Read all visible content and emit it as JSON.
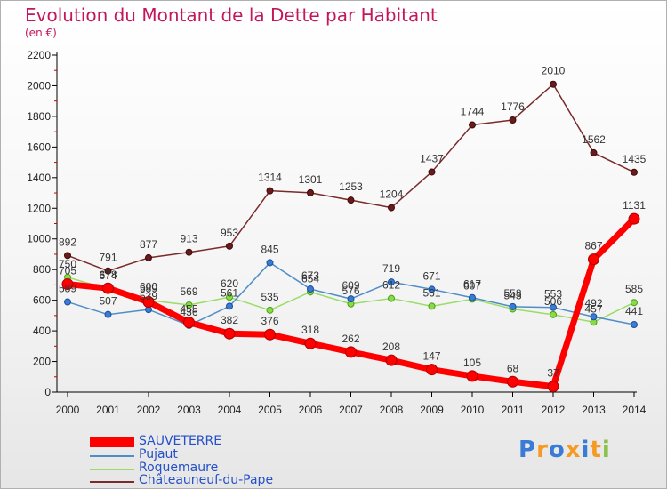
{
  "chart_data": {
    "type": "line",
    "title": "Evolution du Montant de la Dette par Habitant",
    "subtitle": "(en €)",
    "xlabel": "",
    "ylabel": "",
    "categories": [
      "2000",
      "2001",
      "2002",
      "2003",
      "2004",
      "2005",
      "2006",
      "2007",
      "2008",
      "2009",
      "2010",
      "2011",
      "2012",
      "2013",
      "2014"
    ],
    "ylim": [
      0,
      2200
    ],
    "yticks": [
      0,
      200,
      400,
      600,
      800,
      1000,
      1200,
      1400,
      1600,
      1800,
      2000,
      2200
    ],
    "grid": false,
    "legend_position": "bottom-left",
    "series": [
      {
        "name": "SAUVETERRE",
        "color": "#ff0000",
        "values": [
          705,
          678,
          589,
          455,
          382,
          376,
          318,
          262,
          208,
          147,
          105,
          68,
          37,
          867,
          1131
        ]
      },
      {
        "name": "Pujaut",
        "color": "#4f8dc9",
        "values": [
          589,
          507,
          539,
          436,
          561,
          845,
          673,
          609,
          719,
          671,
          617,
          558,
          553,
          492,
          441
        ]
      },
      {
        "name": "Roquemaure",
        "color": "#99dd66",
        "values": [
          750,
          674,
          600,
          569,
          620,
          535,
          654,
          576,
          612,
          561,
          607,
          543,
          506,
          457,
          585
        ]
      },
      {
        "name": "Châteauneuf-du-Pape",
        "color": "#7a2a2a",
        "values": [
          892,
          791,
          877,
          913,
          953,
          1314,
          1301,
          1253,
          1204,
          1437,
          1744,
          1776,
          2010,
          1562,
          1435
        ]
      }
    ],
    "data_labels": [
      [
        "705",
        "678",
        "589",
        "455",
        "382",
        "376",
        "318",
        "262",
        "208",
        "147",
        "105",
        "68",
        "37",
        "867",
        "1131"
      ],
      [
        "589",
        "507",
        "539",
        "436",
        "561",
        "845",
        "673",
        "609",
        "719",
        "671",
        "617",
        "558",
        "553",
        "492",
        "441"
      ],
      [
        "750",
        "674",
        "600",
        "569",
        "620",
        "535",
        "654",
        "576",
        "612",
        "561",
        "607",
        "543",
        "506",
        "457",
        "585"
      ],
      [
        "892",
        "791",
        "877",
        "913",
        "953",
        "1314",
        "1301",
        "1253",
        "1204",
        "1437",
        "1744",
        "1776",
        "2010",
        "1562",
        "1435"
      ]
    ]
  },
  "logo": {
    "text": "Proxiti",
    "colors": [
      "#3a7bd5",
      "#f59a23",
      "#3a7bd5",
      "#f59a23",
      "#3a7bd5",
      "#f59a23",
      "#8bc34a"
    ]
  }
}
